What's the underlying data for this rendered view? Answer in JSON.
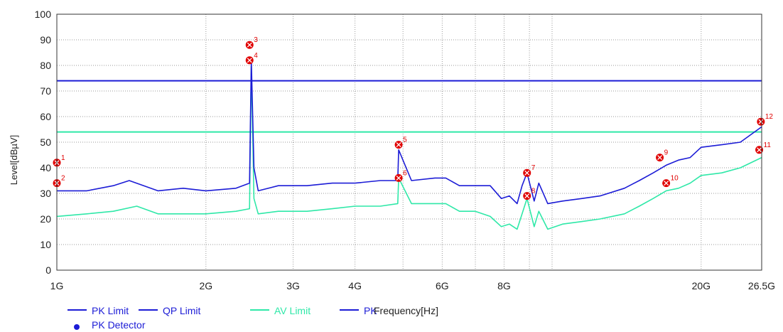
{
  "chart_data": {
    "type": "line",
    "ylabel": "Level[dBµV]",
    "xlabel": "Frequency[Hz]",
    "xscale": "log",
    "xlim": [
      1000000000,
      26500000000
    ],
    "ylim": [
      0,
      100
    ],
    "grid": true,
    "x_ticks": [
      {
        "value": 1000000000,
        "label": "1G"
      },
      {
        "value": 2000000000,
        "label": "2G"
      },
      {
        "value": 3000000000,
        "label": "3G"
      },
      {
        "value": 4000000000,
        "label": "4G"
      },
      {
        "value": 6000000000,
        "label": "6G"
      },
      {
        "value": 8000000000,
        "label": "8G"
      },
      {
        "value": 20000000000,
        "label": "20G"
      },
      {
        "value": 26500000000,
        "label": "26.5G"
      }
    ],
    "y_ticks": [
      0,
      10,
      20,
      30,
      40,
      50,
      60,
      70,
      80,
      90,
      100
    ],
    "limit_lines": [
      {
        "name": "PK Limit",
        "value": 74,
        "color": "#1c1cd6"
      },
      {
        "name": "AV Limit",
        "value": 54,
        "color": "#2fe8a8"
      }
    ],
    "series": [
      {
        "name": "PK",
        "color": "#1c1cd6",
        "x": [
          1000000000,
          1150000000,
          1300000000,
          1400000000,
          1600000000,
          1800000000,
          2000000000,
          2300000000,
          2450000000,
          2470000000,
          2500000000,
          2550000000,
          2800000000,
          3200000000,
          3600000000,
          4000000000,
          4500000000,
          4880000000,
          4900000000,
          5200000000,
          5800000000,
          6100000000,
          6500000000,
          7000000000,
          7500000000,
          7900000000,
          8200000000,
          8500000000,
          8700000000,
          8900000000,
          9200000000,
          9400000000,
          9800000000,
          10500000000,
          11500000000,
          12500000000,
          14000000000,
          15000000000,
          16000000000,
          17000000000,
          18000000000,
          19000000000,
          20000000000,
          22000000000,
          24000000000,
          26500000000
        ],
        "y": [
          31,
          31,
          33,
          35,
          31,
          32,
          31,
          32,
          34,
          82,
          40,
          31,
          33,
          33,
          34,
          34,
          35,
          35,
          47,
          35,
          36,
          36,
          33,
          33,
          33,
          28,
          29,
          26,
          33,
          38,
          27,
          34,
          26,
          27,
          28,
          29,
          32,
          35,
          38,
          41,
          43,
          44,
          48,
          49,
          50,
          56
        ]
      },
      {
        "name": "AV",
        "color": "#2fe8a8",
        "x": [
          1000000000,
          1150000000,
          1300000000,
          1450000000,
          1600000000,
          1800000000,
          2000000000,
          2300000000,
          2450000000,
          2470000000,
          2500000000,
          2550000000,
          2800000000,
          3200000000,
          3600000000,
          4000000000,
          4500000000,
          4880000000,
          4900000000,
          5200000000,
          5800000000,
          6100000000,
          6500000000,
          7000000000,
          7500000000,
          7900000000,
          8200000000,
          8500000000,
          8700000000,
          8900000000,
          9200000000,
          9400000000,
          9800000000,
          10500000000,
          11500000000,
          12500000000,
          14000000000,
          15000000000,
          16000000000,
          17000000000,
          18000000000,
          19000000000,
          20000000000,
          22000000000,
          24000000000,
          26500000000
        ],
        "y": [
          21,
          22,
          23,
          25,
          22,
          22,
          22,
          23,
          24,
          80,
          28,
          22,
          23,
          23,
          24,
          25,
          25,
          26,
          36,
          26,
          26,
          26,
          23,
          23,
          21,
          17,
          18,
          16,
          22,
          28,
          17,
          23,
          16,
          18,
          19,
          20,
          22,
          25,
          28,
          31,
          32,
          34,
          37,
          38,
          40,
          44
        ]
      }
    ],
    "markers": [
      {
        "label": "1",
        "x": 1000000000,
        "y": 42
      },
      {
        "label": "2",
        "x": 1000000000,
        "y": 34
      },
      {
        "label": "3",
        "x": 2450000000,
        "y": 88
      },
      {
        "label": "4",
        "x": 2450000000,
        "y": 82
      },
      {
        "label": "5",
        "x": 4900000000,
        "y": 49
      },
      {
        "label": "6",
        "x": 4900000000,
        "y": 36
      },
      {
        "label": "7",
        "x": 8900000000,
        "y": 38
      },
      {
        "label": "8",
        "x": 8900000000,
        "y": 29
      },
      {
        "label": "9",
        "x": 16500000000,
        "y": 44
      },
      {
        "label": "10",
        "x": 17000000000,
        "y": 34
      },
      {
        "label": "11",
        "x": 26200000000,
        "y": 47
      },
      {
        "label": "12",
        "x": 26400000000,
        "y": 58
      }
    ],
    "legend": [
      {
        "label": "PK Limit",
        "color": "#1c1cd6",
        "kind": "line"
      },
      {
        "label": "QP Limit",
        "color": "#1c1cd6",
        "kind": "line"
      },
      {
        "label": "AV Limit",
        "color": "#2fe8a8",
        "kind": "line"
      },
      {
        "label": "PK",
        "color": "#1c1cd6",
        "kind": "line"
      },
      {
        "label": "PK Detector",
        "color": "#1c1cd6",
        "kind": "dot"
      }
    ]
  }
}
